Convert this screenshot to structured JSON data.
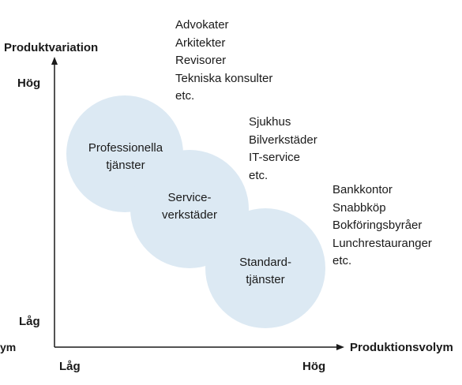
{
  "axes": {
    "y_title": "Produktvariation",
    "y_high": "Hög",
    "y_low": "Låg",
    "x_title": "Produktionsvolym",
    "x_low": "Låg",
    "x_high": "Hög",
    "clipped_left_text": "ym"
  },
  "bubbles": [
    {
      "line1": "Professionella",
      "line2": "tjänster"
    },
    {
      "line1": "Service-",
      "line2": "verkstäder"
    },
    {
      "line1": "Standard-",
      "line2": "tjänster"
    }
  ],
  "examples": [
    {
      "items": [
        "Advokater",
        "Arkitekter",
        "Revisorer",
        "Tekniska konsulter",
        "etc."
      ]
    },
    {
      "items": [
        "Sjukhus",
        "Bilverkstäder",
        "IT-service",
        "etc."
      ]
    },
    {
      "items": [
        "Bankkontor",
        "Snabbköp",
        "Bokföringsbyråer",
        "Lunchrestauranger",
        "etc."
      ]
    }
  ],
  "colors": {
    "bubble_fill": "#dce9f3",
    "axis": "#1a1a1a"
  }
}
